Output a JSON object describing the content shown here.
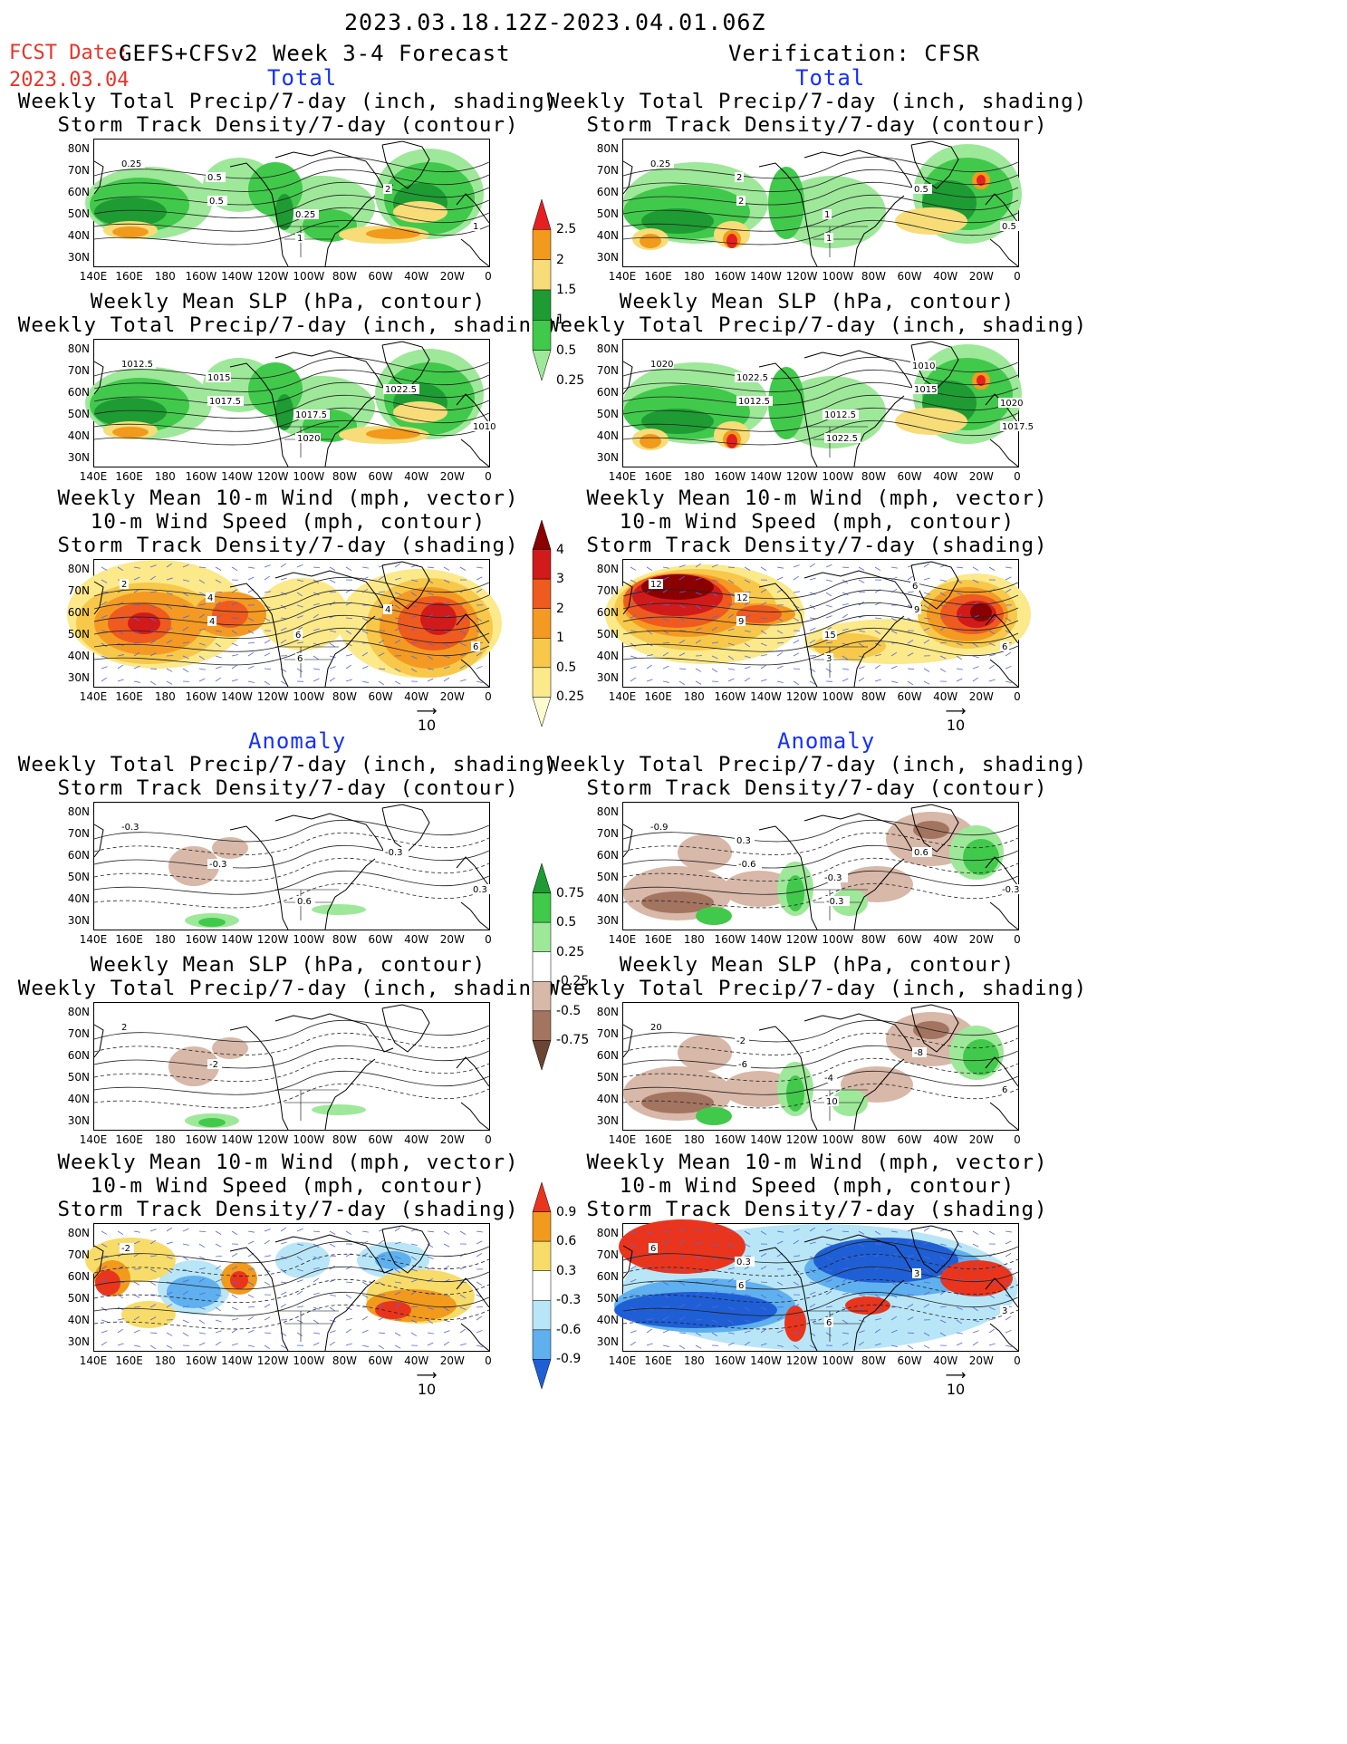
{
  "header": {
    "period": "2023.03.18.12Z-2023.04.01.06Z",
    "fcst_date_label": "FCST Date:",
    "fcst_date": "2023.03.04",
    "forecast_title": "GEFS+CFSv2 Week 3-4 Forecast",
    "verification_title": "Verification: CFSR"
  },
  "sections": {
    "total": "Total",
    "anomaly": "Anomaly"
  },
  "panel_titles": {
    "precip_storm": [
      "Weekly Total Precip/7-day (inch, shading)",
      "Storm Track Density/7-day (contour)"
    ],
    "slp_precip": [
      "Weekly Mean SLP (hPa, contour)",
      "Weekly Total Precip/7-day (inch, shading)"
    ],
    "wind": [
      "Weekly Mean 10-m Wind (mph, vector)",
      "10-m Wind Speed (mph, contour)",
      "Storm Track Density/7-day (shading)"
    ]
  },
  "axes": {
    "lat_ticks": [
      "80N",
      "70N",
      "60N",
      "50N",
      "40N",
      "30N"
    ],
    "lon_ticks": [
      "140E",
      "160E",
      "180",
      "160W",
      "140W",
      "120W",
      "100W",
      "80W",
      "60W",
      "40W",
      "20W",
      "0"
    ]
  },
  "vector_ref": "10",
  "colorbars": {
    "precip_total": {
      "labels": [
        "2.5",
        "2",
        "1.5",
        "1",
        "0.5",
        "0.25"
      ],
      "colors": [
        "#e62020",
        "#f29a1c",
        "#f7dc78",
        "#1e9b33",
        "#41c94b",
        "#9ee89a"
      ]
    },
    "storm_total": {
      "labels": [
        "4",
        "3",
        "2",
        "1",
        "0.5",
        "0.25"
      ],
      "colors": [
        "#8b0000",
        "#d11a1a",
        "#ef5a1e",
        "#f49a22",
        "#f7c84a",
        "#fbe98a",
        "#fffbd0"
      ]
    },
    "precip_anom": {
      "labels": [
        "0.75",
        "0.5",
        "0.25",
        "-0.25",
        "-0.5",
        "-0.75"
      ],
      "colors": [
        "#1e9b33",
        "#41c94b",
        "#9ee89a",
        "#ffffff",
        "#d8b8a8",
        "#a37460",
        "#6b4433"
      ]
    },
    "storm_anom": {
      "labels": [
        "0.9",
        "0.6",
        "0.3",
        "-0.3",
        "-0.6",
        "-0.9"
      ],
      "colors": [
        "#e9351d",
        "#f29a1c",
        "#f8dc6a",
        "#ffffff",
        "#b9e6f7",
        "#5fb0ee",
        "#1f5fd6"
      ]
    }
  },
  "contour_labels": {
    "fc_precip": [
      "0.25",
      "0.5",
      "1",
      "2",
      "1",
      "0.5",
      "0.25"
    ],
    "vf_precip": [
      "0.25",
      "2",
      "1",
      "0.5",
      "0.5",
      "2",
      "1"
    ],
    "fc_slp": [
      "1012.5",
      "1017.5",
      "1020",
      "1022.5",
      "1010",
      "1015",
      "1017.5"
    ],
    "vf_slp": [
      "1020",
      "1012.5",
      "1022.5",
      "1015",
      "1017.5",
      "1022.5",
      "1012.5",
      "1010",
      "1020"
    ],
    "fc_wind": [
      "2",
      "4",
      "6",
      "4",
      "6",
      "4",
      "6"
    ],
    "vf_wind": [
      "12",
      "9",
      "3",
      "9",
      "6",
      "12",
      "15",
      "6"
    ],
    "fc_precip_anom": [
      "-0.3",
      "-0.3",
      "0.6",
      "-0.3",
      "0.3"
    ],
    "vf_precip_anom": [
      "-0.9",
      "-0.6",
      "-0.3",
      "0.6",
      "-0.3",
      "0.3",
      "-0.3"
    ],
    "fc_slp_anom": [
      "2",
      "-2"
    ],
    "vf_slp_anom": [
      "20",
      "-6",
      "10",
      "-8",
      "6",
      "-2",
      "-4"
    ],
    "fc_wind_anom": [
      "-2"
    ],
    "vf_wind_anom": [
      "6",
      "6",
      "6",
      "3",
      "3",
      "0.3"
    ]
  }
}
